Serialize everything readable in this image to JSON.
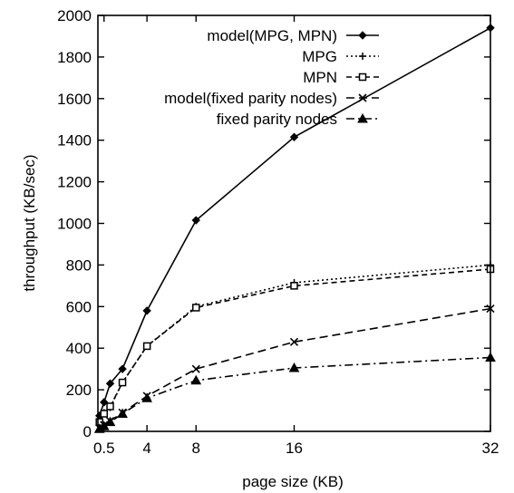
{
  "chart_data": {
    "type": "line",
    "title": "",
    "xlabel": "page size (KB)",
    "ylabel": "throughput (KB/sec)",
    "xlim": [
      0,
      32
    ],
    "ylim": [
      0,
      2000
    ],
    "x_ticks": [
      0.5,
      4,
      8,
      16,
      32
    ],
    "x_tick_labels": [
      "0.5",
      "4",
      "8",
      "16",
      "32"
    ],
    "y_ticks": [
      0,
      200,
      400,
      600,
      800,
      1000,
      1200,
      1400,
      1600,
      1800,
      2000
    ],
    "y_tick_labels": [
      "0",
      "200",
      "400",
      "600",
      "800",
      "1000",
      "1200",
      "1400",
      "1600",
      "1800",
      "2000"
    ],
    "grid": false,
    "legend_position": "top-right",
    "series": [
      {
        "name": "model(MPG, MPN)",
        "line_style": "solid",
        "marker": "diamond",
        "x": [
          0.125,
          0.5,
          1,
          2,
          4,
          8,
          16,
          32
        ],
        "y": [
          75,
          140,
          230,
          300,
          580,
          1015,
          1415,
          1940
        ]
      },
      {
        "name": "MPG",
        "line_style": "dotted",
        "marker": "plus",
        "x": [
          0.125,
          0.5,
          1,
          2,
          4,
          8,
          16,
          32
        ],
        "y": [
          50,
          90,
          115,
          235,
          410,
          600,
          715,
          800
        ]
      },
      {
        "name": "MPN",
        "line_style": "dashed",
        "marker": "square",
        "x": [
          0.125,
          0.5,
          1,
          2,
          4,
          8,
          16,
          32
        ],
        "y": [
          45,
          85,
          120,
          235,
          410,
          595,
          700,
          780
        ]
      },
      {
        "name": "model(fixed parity nodes)",
        "line_style": "long-dash",
        "marker": "x",
        "x": [
          0.125,
          0.5,
          1,
          2,
          4,
          8,
          16,
          32
        ],
        "y": [
          15,
          30,
          50,
          90,
          170,
          300,
          430,
          590
        ]
      },
      {
        "name": "fixed parity nodes",
        "line_style": "dash-dot",
        "marker": "triangle",
        "x": [
          0.125,
          0.5,
          1,
          2,
          4,
          8,
          16,
          32
        ],
        "y": [
          12,
          25,
          45,
          85,
          160,
          245,
          305,
          355
        ]
      }
    ]
  }
}
